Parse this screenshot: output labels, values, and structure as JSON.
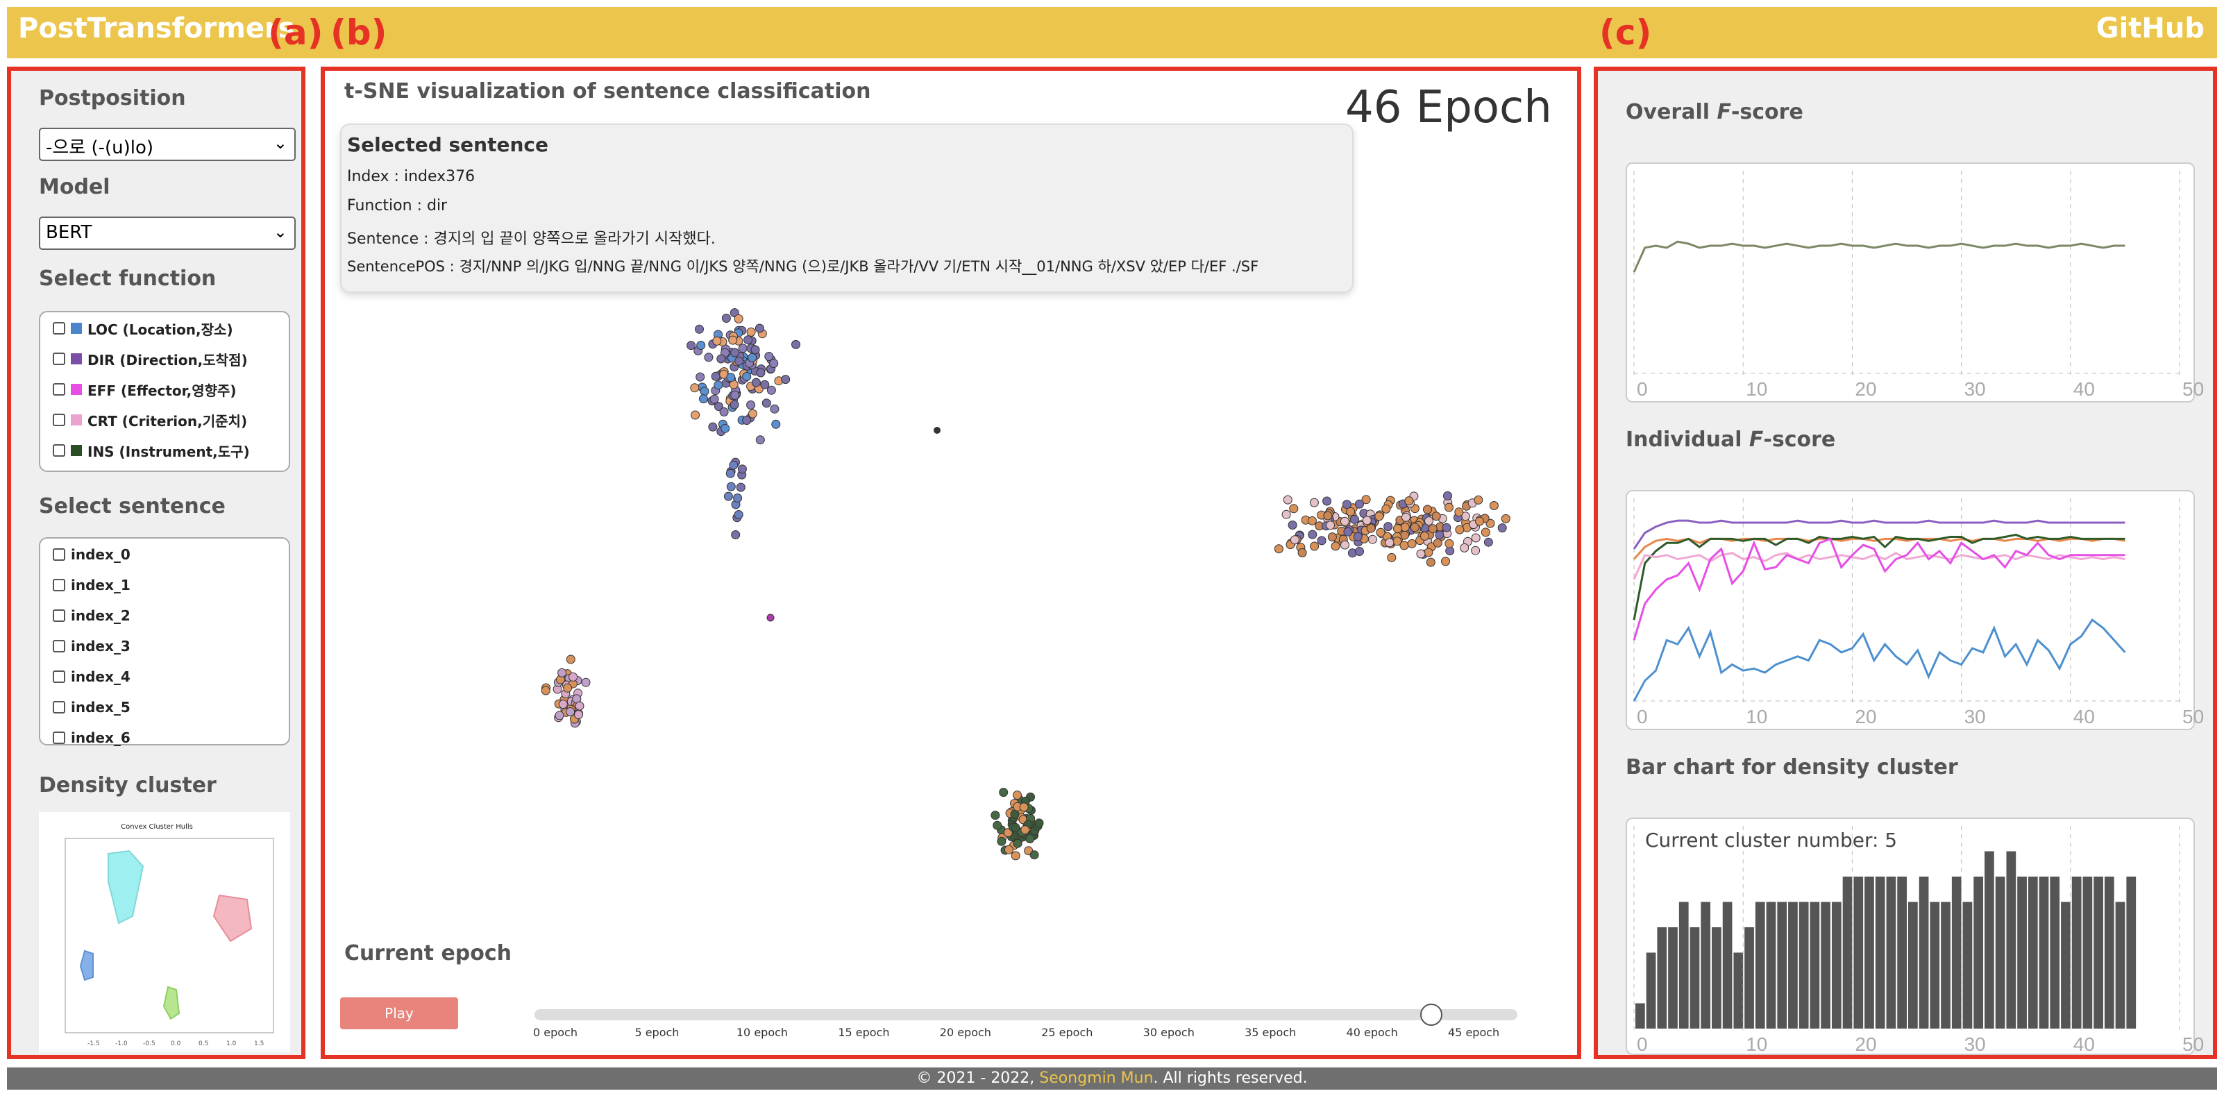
{
  "app": {
    "brand": "PostTransformers",
    "github": "GitHub"
  },
  "panel_labels": {
    "a": "(a)",
    "b": "(b)",
    "c": "(c)"
  },
  "left": {
    "postposition_title": "Postposition",
    "postposition_value": "-으로 (-(u)lo)",
    "model_title": "Model",
    "model_value": "BERT",
    "function_title": "Select function",
    "functions": [
      {
        "label": "LOC (Location,장소)",
        "color": "#4a84cb"
      },
      {
        "label": "DIR (Direction,도착점)",
        "color": "#7b4fa8"
      },
      {
        "label": "EFF (Effector,영향주)",
        "color": "#e64ee6"
      },
      {
        "label": "CRT (Criterion,기준치)",
        "color": "#eaa3cf"
      },
      {
        "label": "INS (Instrument,도구)",
        "color": "#2a4d25"
      }
    ],
    "sentence_title": "Select sentence",
    "sentences": [
      "index_0",
      "index_1",
      "index_2",
      "index_3",
      "index_4",
      "index_5",
      "index_6"
    ],
    "density_title": "Density cluster",
    "density_thumb_title": "Convex Cluster Hulls",
    "density_thumb_xticks": [
      "-1.5",
      "-1.0",
      "-0.5",
      "0.0",
      "0.5",
      "1.0",
      "1.5"
    ]
  },
  "center": {
    "title": "t-SNE visualization of sentence classification",
    "epoch_display": "46 Epoch",
    "tooltip": {
      "title": "Selected sentence",
      "index": "Index : index376",
      "function": "Function : dir",
      "sentence": "Sentence : 경지의 입 끝이 양쪽으로 올라가기 시작했다.",
      "pos": "SentencePOS : 경지/NNP 의/JKG 입/NNG 끝/NNG 이/JKS 양쪽/NNG (으)로/JKB 올라가/VV 기/ETN 시작__01/NNG 하/XSV 았/EP 다/EF ./SF"
    },
    "current_epoch_title": "Current epoch",
    "play_label": "Play",
    "slider_value": 46,
    "slider_max": 49,
    "epoch_ticks": [
      "0 epoch",
      "5 epoch",
      "10 epoch",
      "15 epoch",
      "20 epoch",
      "25 epoch",
      "30 epoch",
      "35 epoch",
      "40 epoch",
      "45 epoch"
    ]
  },
  "right": {
    "overall_title_prefix": "Overall ",
    "overall_title_italic": "F",
    "overall_title_suffix": "-score",
    "individual_title_prefix": "Individual ",
    "individual_title_italic": "F",
    "individual_title_suffix": "-score",
    "bar_title": "Bar chart for density cluster",
    "cluster_number_text": "Current cluster number: 5"
  },
  "footer": {
    "prefix": "© 2021 - 2022, ",
    "author": "Seongmin Mun",
    "suffix": ". All rights reserved."
  },
  "chart_data": [
    {
      "type": "line",
      "name": "overall-f-score",
      "x_ticks": [
        "0",
        "10",
        "20",
        "30",
        "40",
        "50"
      ],
      "xlim": [
        0,
        50
      ],
      "ylim": [
        0,
        1
      ],
      "series": [
        {
          "color": "#7c8765",
          "values": [
            0.5,
            0.62,
            0.63,
            0.62,
            0.65,
            0.64,
            0.62,
            0.63,
            0.63,
            0.64,
            0.63,
            0.63,
            0.62,
            0.63,
            0.64,
            0.63,
            0.62,
            0.63,
            0.63,
            0.64,
            0.63,
            0.63,
            0.62,
            0.63,
            0.64,
            0.63,
            0.63,
            0.62,
            0.63,
            0.63,
            0.64,
            0.63,
            0.62,
            0.63,
            0.63,
            0.64,
            0.63,
            0.63,
            0.62,
            0.63,
            0.63,
            0.64,
            0.63,
            0.62,
            0.63,
            0.63
          ]
        }
      ]
    },
    {
      "type": "line",
      "name": "individual-f-score",
      "x_ticks": [
        "0",
        "10",
        "20",
        "30",
        "40",
        "50"
      ],
      "xlim": [
        0,
        50
      ],
      "ylim": [
        0,
        1
      ],
      "series": [
        {
          "color": "#8a5fc0",
          "values": [
            0.75,
            0.83,
            0.86,
            0.88,
            0.89,
            0.89,
            0.88,
            0.88,
            0.89,
            0.88,
            0.88,
            0.88,
            0.88,
            0.88,
            0.88,
            0.89,
            0.88,
            0.88,
            0.88,
            0.89,
            0.88,
            0.88,
            0.89,
            0.88,
            0.88,
            0.88,
            0.88,
            0.89,
            0.88,
            0.88,
            0.88,
            0.88,
            0.88,
            0.89,
            0.88,
            0.88,
            0.88,
            0.89,
            0.88,
            0.88,
            0.88,
            0.88,
            0.88,
            0.88,
            0.88,
            0.88
          ]
        },
        {
          "color": "#e8874a",
          "values": [
            0.7,
            0.76,
            0.79,
            0.8,
            0.79,
            0.8,
            0.78,
            0.8,
            0.8,
            0.79,
            0.8,
            0.8,
            0.79,
            0.8,
            0.8,
            0.8,
            0.79,
            0.8,
            0.8,
            0.79,
            0.8,
            0.8,
            0.79,
            0.8,
            0.8,
            0.79,
            0.8,
            0.8,
            0.8,
            0.79,
            0.8,
            0.79,
            0.8,
            0.8,
            0.79,
            0.8,
            0.8,
            0.79,
            0.8,
            0.79,
            0.8,
            0.8,
            0.79,
            0.8,
            0.8,
            0.79
          ]
        },
        {
          "color": "#2f5a2a",
          "values": [
            0.4,
            0.68,
            0.74,
            0.78,
            0.78,
            0.8,
            0.76,
            0.8,
            0.8,
            0.8,
            0.79,
            0.8,
            0.8,
            0.77,
            0.8,
            0.8,
            0.78,
            0.81,
            0.8,
            0.8,
            0.81,
            0.8,
            0.81,
            0.76,
            0.81,
            0.8,
            0.8,
            0.79,
            0.8,
            0.81,
            0.81,
            0.78,
            0.8,
            0.8,
            0.81,
            0.82,
            0.8,
            0.81,
            0.8,
            0.8,
            0.81,
            0.8,
            0.8,
            0.8,
            0.8,
            0.8
          ]
        },
        {
          "color": "#f0a8d2",
          "values": [
            0.6,
            0.72,
            0.71,
            0.72,
            0.7,
            0.71,
            0.72,
            0.69,
            0.72,
            0.73,
            0.7,
            0.71,
            0.69,
            0.72,
            0.73,
            0.7,
            0.72,
            0.7,
            0.71,
            0.72,
            0.71,
            0.7,
            0.72,
            0.7,
            0.73,
            0.7,
            0.71,
            0.72,
            0.71,
            0.7,
            0.72,
            0.71,
            0.7,
            0.71,
            0.72,
            0.7,
            0.72,
            0.71,
            0.7,
            0.72,
            0.71,
            0.7,
            0.71,
            0.7,
            0.71,
            0.7
          ]
        },
        {
          "color": "#e64ee6",
          "values": [
            0.3,
            0.48,
            0.55,
            0.6,
            0.62,
            0.68,
            0.55,
            0.7,
            0.75,
            0.58,
            0.64,
            0.78,
            0.65,
            0.66,
            0.72,
            0.7,
            0.68,
            0.78,
            0.8,
            0.66,
            0.72,
            0.77,
            0.75,
            0.64,
            0.7,
            0.72,
            0.78,
            0.7,
            0.74,
            0.68,
            0.78,
            0.74,
            0.7,
            0.72,
            0.66,
            0.74,
            0.72,
            0.78,
            0.72,
            0.7,
            0.72,
            0.72,
            0.72,
            0.72,
            0.72,
            0.72
          ]
        },
        {
          "color": "#4d90cf",
          "values": [
            0.0,
            0.1,
            0.15,
            0.3,
            0.28,
            0.36,
            0.22,
            0.34,
            0.14,
            0.18,
            0.15,
            0.16,
            0.14,
            0.18,
            0.2,
            0.22,
            0.2,
            0.3,
            0.28,
            0.24,
            0.26,
            0.33,
            0.2,
            0.28,
            0.22,
            0.18,
            0.25,
            0.12,
            0.24,
            0.2,
            0.18,
            0.26,
            0.24,
            0.36,
            0.22,
            0.28,
            0.18,
            0.3,
            0.25,
            0.16,
            0.28,
            0.32,
            0.4,
            0.36,
            0.3,
            0.24
          ]
        }
      ]
    },
    {
      "type": "bar",
      "name": "density-cluster-bars",
      "x_ticks": [
        "0",
        "10",
        "20",
        "30",
        "40",
        "50"
      ],
      "xlim": [
        0,
        50
      ],
      "ylim": [
        0,
        8
      ],
      "values": [
        1,
        3,
        4,
        4,
        5,
        4,
        5,
        4,
        5,
        3,
        4,
        5,
        5,
        5,
        5,
        5,
        5,
        5,
        5,
        6,
        6,
        6,
        6,
        6,
        6,
        5,
        6,
        5,
        5,
        6,
        5,
        6,
        7,
        6,
        7,
        6,
        6,
        6,
        6,
        5,
        6,
        6,
        6,
        6,
        5,
        6
      ]
    }
  ]
}
